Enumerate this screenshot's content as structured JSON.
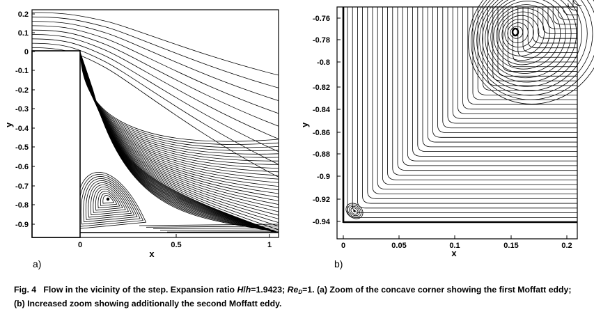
{
  "figure": {
    "panel_a": {
      "label": "a)",
      "xlabel": "x",
      "ylabel": "y",
      "xticks": [
        "0",
        "0.5",
        "1"
      ],
      "yticks": [
        "0.2",
        "0.1",
        "0",
        "-0.1",
        "-0.2",
        "-0.3",
        "-0.4",
        "-0.5",
        "-0.6",
        "-0.7",
        "-0.8",
        "-0.9"
      ]
    },
    "panel_b": {
      "label": "b)",
      "xlabel": "x",
      "ylabel": "y",
      "xticks": [
        "0",
        "0.05",
        "0.1",
        "0.15",
        "0.2"
      ],
      "yticks": [
        "-0.76",
        "-0.78",
        "-0.8",
        "-0.82",
        "-0.84",
        "-0.86",
        "-0.88",
        "-0.9",
        "-0.92",
        "-0.94"
      ]
    }
  },
  "caption": {
    "fig_no": "Fig. 4",
    "part1": "Flow in the vicinity of the step. Expansion ratio ",
    "H": "H",
    "slash": "/",
    "h": "h",
    "ratio": "=1.9423; ",
    "Re": "Re",
    "D": "D",
    "re_val": "=1.",
    "part2": " (a) Zoom of the concave corner showing the first Moffatt eddy; (b) Increased zoom showing additionally the second Moffatt eddy."
  }
}
